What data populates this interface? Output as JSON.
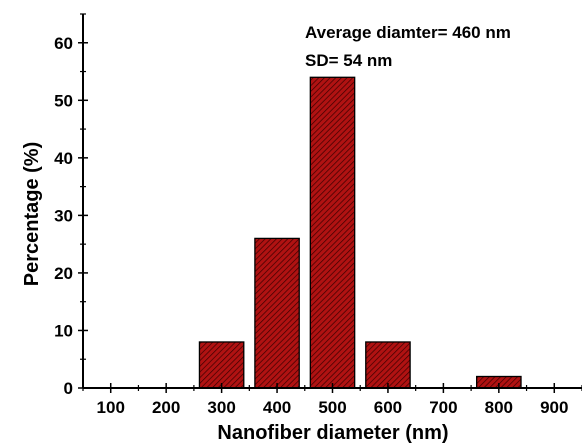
{
  "chart_data": {
    "type": "bar",
    "title": "",
    "xlabel": "Nanofiber diameter (nm)",
    "ylabel": "Percentage (%)",
    "x": [
      300,
      400,
      500,
      600,
      800
    ],
    "values": [
      8,
      26,
      54,
      8,
      2
    ],
    "bar_width": 80,
    "xlim": [
      50,
      950
    ],
    "ylim": [
      0,
      65
    ],
    "xticks": [
      100,
      200,
      300,
      400,
      500,
      600,
      700,
      800,
      900
    ],
    "yticks": [
      0,
      10,
      20,
      30,
      40,
      50,
      60
    ],
    "grid": false,
    "legend": "none",
    "bar_color": "#aa1111",
    "annotations": [
      "Average diamter= 460 nm",
      "SD= 54 nm"
    ]
  }
}
